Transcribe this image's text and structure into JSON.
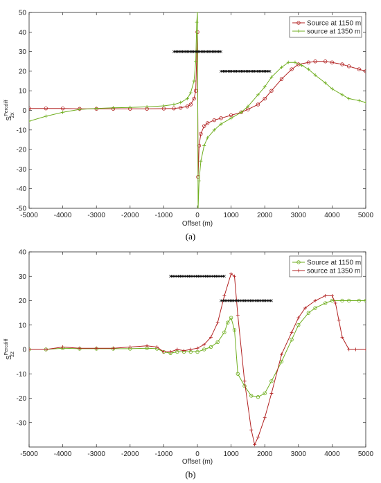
{
  "colors": {
    "series_red": "#b22222",
    "series_green": "#6fae1f",
    "bar": "#111111",
    "axis": "#262626",
    "grid": "#e6e6e6"
  },
  "chart_data": [
    {
      "type": "line",
      "caption": "(a)",
      "xlabel": "Offset (m)",
      "ylabel_base": "S",
      "ylabel_sup": "Percdiff",
      "ylabel_sub": "zx",
      "xlim": [
        -5000,
        5000
      ],
      "ylim": [
        -50,
        50
      ],
      "xticks": [
        -5000,
        -4000,
        -3000,
        -2000,
        -1000,
        0,
        1000,
        2000,
        3000,
        4000,
        5000
      ],
      "yticks": [
        -50,
        -40,
        -30,
        -20,
        -10,
        0,
        10,
        20,
        30,
        40,
        50
      ],
      "legend_position": "top-right",
      "series": [
        {
          "name": "Source at 1150 m",
          "color": "#b22222",
          "marker": "circle",
          "x": [
            -5000,
            -4500,
            -4000,
            -3500,
            -3000,
            -2500,
            -2000,
            -1500,
            -1000,
            -700,
            -500,
            -300,
            -200,
            -100,
            -50,
            0,
            20,
            50,
            100,
            200,
            300,
            500,
            700,
            1000,
            1300,
            1500,
            1800,
            2000,
            2200,
            2500,
            2800,
            3000,
            3300,
            3500,
            3800,
            4000,
            4300,
            4500,
            4800,
            5000
          ],
          "y": [
            1,
            1,
            1,
            0.8,
            0.8,
            0.8,
            0.8,
            0.8,
            0.9,
            1,
            1.3,
            2,
            3,
            6,
            10,
            40,
            -34,
            -18,
            -12,
            -8,
            -6.5,
            -5,
            -4,
            -2.5,
            -1,
            0.5,
            3,
            6,
            10,
            16,
            21,
            23.5,
            24.5,
            25,
            25,
            24.5,
            23.5,
            22.5,
            21,
            20
          ]
        },
        {
          "name": "source at 1350 m",
          "color": "#6fae1f",
          "marker": "plus",
          "x": [
            -5000,
            -4500,
            -4000,
            -3500,
            -3000,
            -2500,
            -2000,
            -1500,
            -1000,
            -700,
            -500,
            -300,
            -200,
            -100,
            -50,
            -20,
            0,
            20,
            50,
            100,
            200,
            300,
            500,
            700,
            1000,
            1300,
            1500,
            1800,
            2000,
            2200,
            2500,
            2700,
            2900,
            3100,
            3300,
            3500,
            3800,
            4000,
            4300,
            4500,
            4800,
            5000
          ],
          "y": [
            -5.5,
            -3,
            -1,
            0.5,
            1,
            1.3,
            1.5,
            1.8,
            2.3,
            3,
            4,
            6,
            9,
            15,
            25,
            45,
            50,
            -50,
            -36,
            -26,
            -18,
            -14,
            -10,
            -7,
            -4,
            -1,
            2,
            8,
            12,
            17,
            22,
            24.5,
            24.5,
            23,
            21,
            18,
            14,
            11,
            8,
            6,
            5,
            4
          ]
        }
      ],
      "bars": [
        {
          "x0": -700,
          "x1": 700,
          "y": 30
        },
        {
          "x0": 700,
          "x1": 2150,
          "y": 20
        }
      ]
    },
    {
      "type": "line",
      "caption": "(b)",
      "xlabel": "Offset (m)",
      "ylabel_base": "S",
      "ylabel_sup": "Percdiff",
      "ylabel_sub": "zz",
      "xlim": [
        -5000,
        5000
      ],
      "ylim": [
        -40,
        40
      ],
      "xticks": [
        -5000,
        -4000,
        -3000,
        -2000,
        -1000,
        0,
        1000,
        2000,
        3000,
        4000,
        5000
      ],
      "yticks": [
        -30,
        -20,
        -10,
        0,
        10,
        20,
        30,
        40
      ],
      "legend_position": "top-right",
      "series": [
        {
          "name": "Source at 1150 m",
          "color": "#6fae1f",
          "marker": "circle",
          "x": [
            -5000,
            -4500,
            -4000,
            -3500,
            -3000,
            -2500,
            -2000,
            -1500,
            -1200,
            -1000,
            -800,
            -600,
            -400,
            -200,
            0,
            200,
            400,
            600,
            800,
            900,
            1000,
            1100,
            1200,
            1400,
            1600,
            1800,
            2000,
            2200,
            2500,
            2800,
            3000,
            3300,
            3500,
            3800,
            4000,
            4300,
            4500,
            4800,
            5000
          ],
          "y": [
            0,
            0,
            0.5,
            0.3,
            0.3,
            0.3,
            0.3,
            0.5,
            0.3,
            -1,
            -1.5,
            -1,
            -1,
            -1,
            -1,
            0,
            1,
            3,
            7,
            11,
            13,
            8,
            -10,
            -15,
            -19,
            -19.5,
            -18,
            -13,
            -5,
            4,
            10,
            15,
            17,
            19,
            20,
            20,
            20,
            20,
            20
          ]
        },
        {
          "name": "source at 1350 m",
          "color": "#b22222",
          "marker": "plus",
          "x": [
            -5000,
            -4500,
            -4000,
            -3500,
            -3000,
            -2500,
            -2000,
            -1500,
            -1200,
            -1000,
            -800,
            -600,
            -400,
            -200,
            0,
            200,
            400,
            600,
            800,
            1000,
            1100,
            1200,
            1400,
            1600,
            1700,
            1800,
            2000,
            2200,
            2500,
            2800,
            3000,
            3200,
            3500,
            3800,
            4000,
            4100,
            4200,
            4300,
            4500,
            4700,
            5000
          ],
          "y": [
            0,
            0,
            1,
            0.5,
            0.5,
            0.5,
            1,
            1.5,
            1,
            -1,
            -1,
            0,
            -0.5,
            0,
            0.5,
            2,
            5,
            11,
            22,
            31,
            30,
            14,
            -13,
            -33,
            -39,
            -36,
            -28,
            -18,
            -2,
            7,
            13,
            17,
            20,
            22,
            22,
            19,
            12,
            5,
            0,
            0,
            0
          ]
        }
      ],
      "bars": [
        {
          "x0": -800,
          "x1": 800,
          "y": 30
        },
        {
          "x0": 700,
          "x1": 2200,
          "y": 20
        }
      ]
    }
  ]
}
